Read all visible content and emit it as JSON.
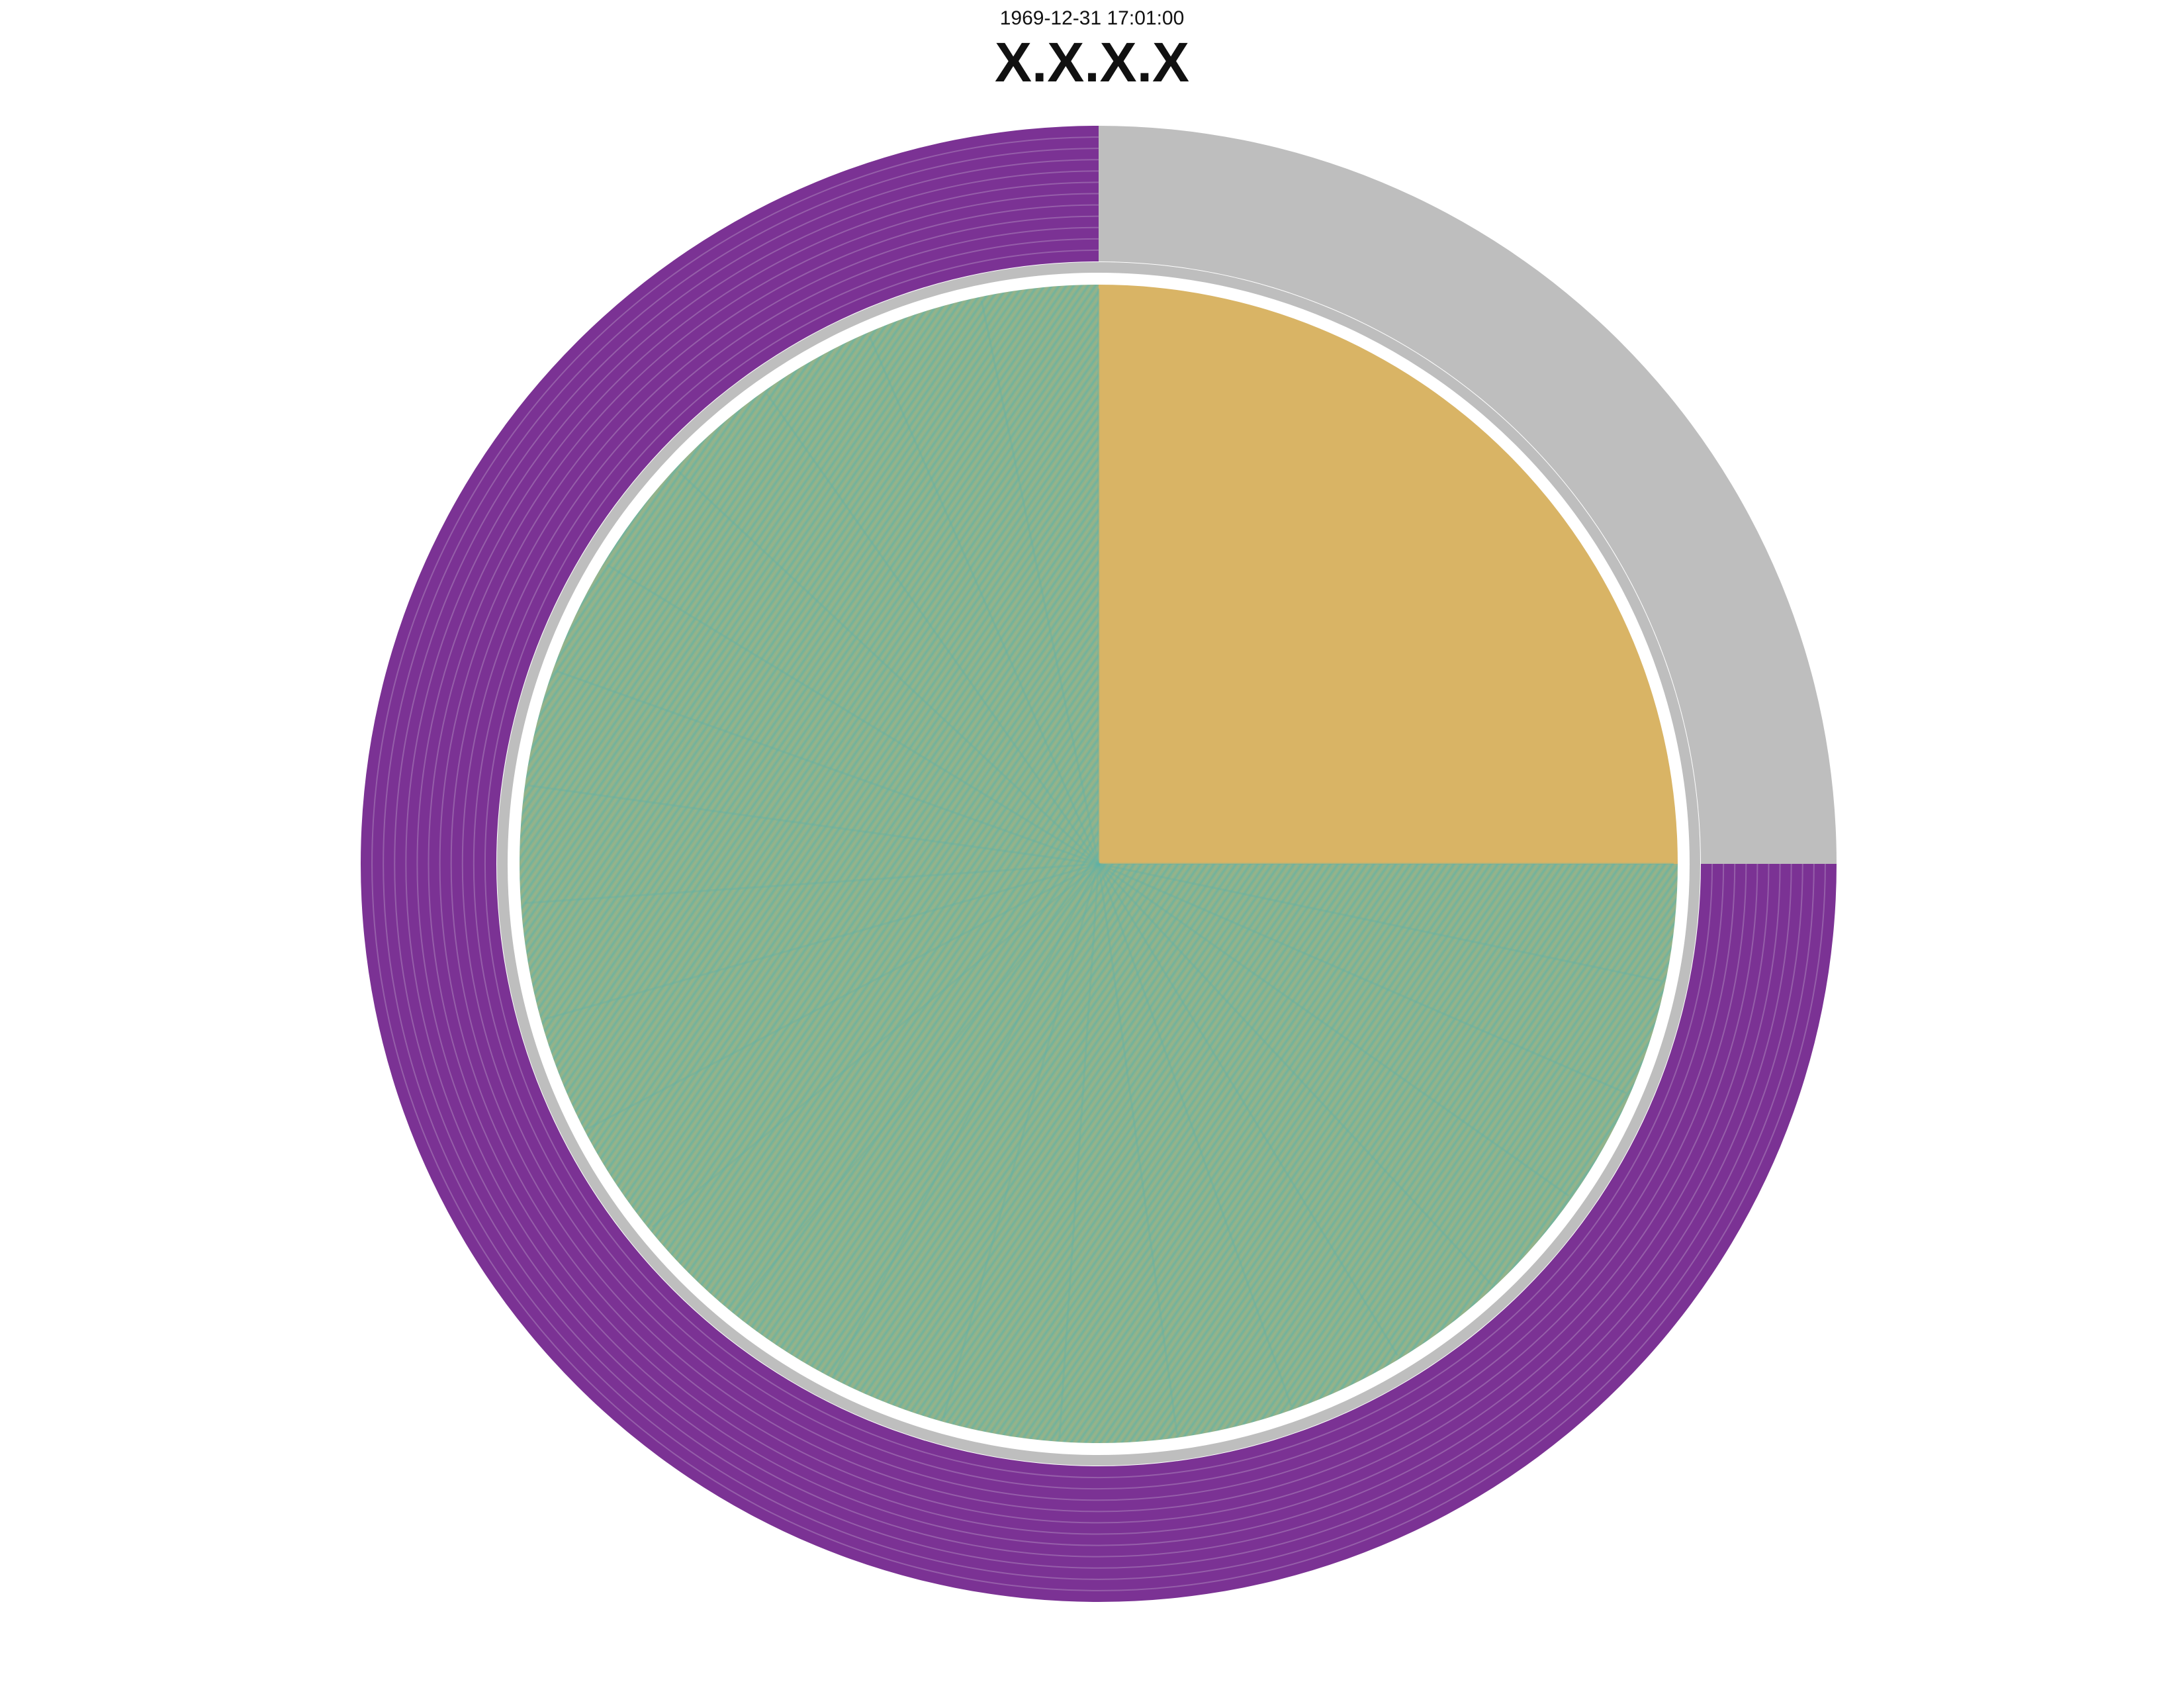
{
  "timestamp": "1969-12-31 17:01:00",
  "title": "X.X.X.X",
  "chart_data": {
    "type": "pie",
    "title": "X.X.X.X",
    "subtitle": "1969-12-31 17:01:00",
    "legend": "none",
    "grid": false,
    "rings": [
      {
        "level": "outer",
        "segments": [
          {
            "value": 25,
            "color": "#bebebe"
          },
          {
            "value": 75,
            "color": "#7b3294"
          }
        ]
      },
      {
        "level": "inner",
        "segments": [
          {
            "value": 25,
            "color": "#d9b465"
          },
          {
            "value": 75,
            "color": "#8bb38f"
          }
        ]
      }
    ],
    "colors": {
      "outer_gray": "#bebebe",
      "outer_purple": "#7b3294",
      "separator": "#ffffff",
      "inner_gold": "#d9b465",
      "inner_green": "#8bb38f",
      "inner_teal": "#62b3a6"
    }
  }
}
